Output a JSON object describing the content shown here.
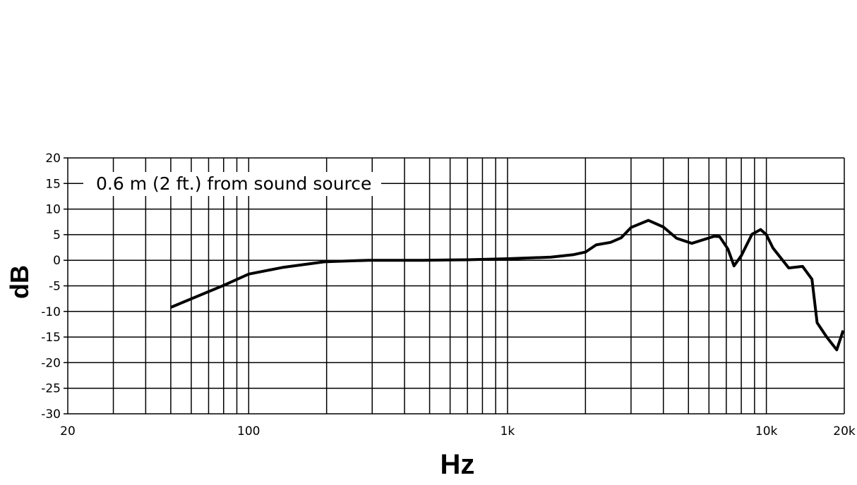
{
  "chart_data": {
    "type": "line",
    "title": "",
    "xlabel": "Hz",
    "ylabel": "dB",
    "x_scale": "log",
    "xlim": [
      20,
      20000
    ],
    "ylim": [
      -30,
      20
    ],
    "grid": true,
    "x_ticks": [
      {
        "value": 20,
        "label": "20"
      },
      {
        "value": 100,
        "label": "100"
      },
      {
        "value": 1000,
        "label": "1k"
      },
      {
        "value": 10000,
        "label": "10k"
      },
      {
        "value": 20000,
        "label": "20k"
      }
    ],
    "y_ticks": [
      20,
      15,
      10,
      5,
      0,
      -5,
      -10,
      -15,
      -20,
      -25,
      -30
    ],
    "annotation": "0.6 m (2 ft.) from sound source",
    "line_color": "#000000",
    "series": [
      {
        "x": [
          50,
          80,
          100,
          135,
          196,
          290,
          470,
          700,
          1000,
          1470,
          1800,
          2000,
          2200,
          2500,
          2750,
          3000,
          3500,
          4000,
          4500,
          5150,
          6300,
          6600,
          7100,
          7500,
          8000,
          8800,
          9500,
          10000,
          10600,
          12200,
          13800,
          15000,
          15700,
          17100,
          18700,
          19800
        ],
        "y": [
          -9.2,
          -4.9,
          -2.7,
          -1.4,
          -0.3,
          0,
          0,
          0.1,
          0.3,
          0.6,
          1.1,
          1.6,
          3.0,
          3.5,
          4.4,
          6.4,
          7.8,
          6.5,
          4.3,
          3.3,
          4.7,
          4.6,
          2.2,
          -1.1,
          0.9,
          5.1,
          6.0,
          5.0,
          2.4,
          -1.5,
          -1.2,
          -3.7,
          -12.2,
          -15,
          -17.5,
          -13.7
        ]
      }
    ]
  }
}
